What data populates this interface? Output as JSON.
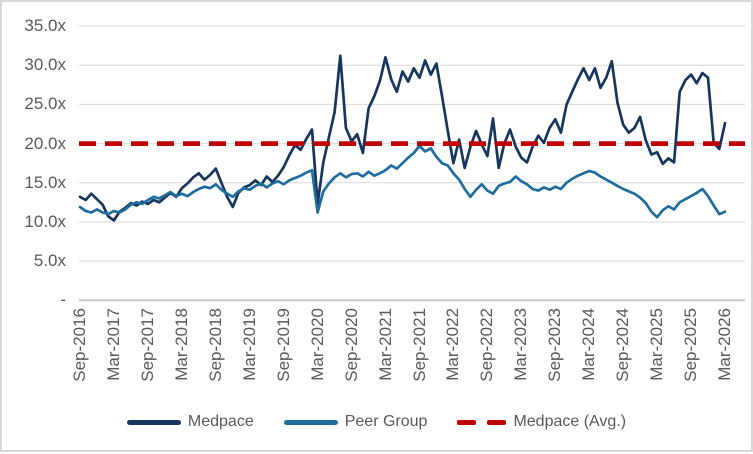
{
  "chart_data": {
    "type": "line",
    "title": "",
    "xlabel": "",
    "ylabel": "",
    "grid": true,
    "legend_position": "bottom",
    "y_axis": {
      "min": 0,
      "max": 35,
      "tick_step": 5,
      "tick_labels": [
        "-",
        "5.0x",
        "10.0x",
        "15.0x",
        "20.0x",
        "25.0x",
        "30.0x",
        "35.0x"
      ]
    },
    "x_axis": {
      "tick_labels": [
        "Sep-2016",
        "Mar-2017",
        "Sep-2017",
        "Mar-2018",
        "Sep-2018",
        "Mar-2019",
        "Sep-2019",
        "Mar-2020",
        "Sep-2020",
        "Mar-2021",
        "Sep-2021",
        "Mar-2022",
        "Sep-2022",
        "Mar-2023",
        "Sep-2023",
        "Mar-2024",
        "Sep-2024",
        "Mar-2025",
        "Sep-2025",
        "Mar-2026"
      ],
      "months_between_ticks": 6,
      "frequency_of_values": "monthly"
    },
    "series": [
      {
        "name": "Medpace",
        "color": "#17365D",
        "style": "solid",
        "values": [
          13.2,
          12.8,
          13.6,
          12.9,
          12.2,
          10.7,
          10.2,
          11.3,
          11.8,
          12.4,
          12.1,
          12.6,
          12.3,
          12.8,
          12.5,
          13.1,
          13.7,
          13.2,
          14.3,
          14.9,
          15.7,
          16.2,
          15.4,
          16.0,
          16.8,
          15.0,
          13.2,
          11.9,
          13.7,
          14.4,
          14.7,
          15.3,
          14.7,
          15.8,
          15.1,
          15.9,
          17.0,
          18.5,
          19.8,
          19.2,
          20.6,
          21.8,
          12.3,
          17.6,
          20.8,
          24.0,
          31.2,
          22.0,
          20.3,
          21.2,
          18.8,
          24.5,
          26.0,
          28.0,
          31.0,
          28.2,
          26.6,
          29.2,
          27.9,
          29.6,
          28.4,
          30.6,
          28.8,
          30.2,
          26.0,
          21.6,
          17.5,
          20.5,
          16.9,
          19.6,
          21.6,
          19.9,
          18.4,
          23.2,
          16.9,
          20.0,
          21.8,
          19.6,
          18.2,
          17.6,
          19.6,
          21.0,
          20.1,
          22.0,
          23.1,
          21.4,
          25.0,
          26.6,
          28.2,
          29.6,
          28.1,
          29.6,
          27.1,
          28.4,
          30.5,
          25.2,
          22.4,
          21.4,
          22.0,
          23.4,
          20.4,
          18.6,
          18.9,
          17.4,
          18.1,
          17.6,
          26.6,
          28.1,
          28.8,
          27.7,
          29.0,
          28.4,
          20.1,
          19.3,
          22.6
        ]
      },
      {
        "name": "Peer Group",
        "color": "#1F6C9F",
        "style": "solid",
        "values": [
          11.9,
          11.4,
          11.2,
          11.6,
          11.2,
          11.0,
          11.4,
          11.2,
          11.6,
          12.2,
          12.5,
          12.3,
          12.8,
          13.2,
          13.0,
          13.4,
          13.8,
          13.3,
          13.6,
          13.3,
          13.8,
          14.2,
          14.5,
          14.3,
          14.8,
          14.1,
          13.6,
          13.2,
          13.9,
          14.3,
          14.1,
          14.6,
          14.9,
          14.4,
          14.9,
          15.2,
          14.8,
          15.3,
          15.6,
          15.9,
          16.3,
          16.6,
          11.2,
          13.9,
          14.9,
          15.7,
          16.2,
          15.7,
          16.1,
          16.2,
          15.8,
          16.4,
          15.9,
          16.2,
          16.6,
          17.2,
          16.8,
          17.5,
          18.2,
          18.8,
          19.7,
          19.0,
          19.4,
          18.3,
          17.5,
          17.2,
          16.2,
          15.4,
          14.2,
          13.2,
          14.1,
          14.8,
          14.0,
          13.6,
          14.6,
          14.9,
          15.1,
          15.8,
          15.2,
          14.8,
          14.2,
          14.0,
          14.4,
          14.1,
          14.5,
          14.2,
          15.0,
          15.5,
          15.9,
          16.2,
          16.5,
          16.3,
          15.8,
          15.4,
          15.0,
          14.6,
          14.2,
          13.9,
          13.6,
          13.1,
          12.4,
          11.3,
          10.6,
          11.5,
          12.0,
          11.6,
          12.5,
          12.9,
          13.3,
          13.7,
          14.2,
          13.3,
          12.1,
          11.0,
          11.3
        ]
      },
      {
        "name": "Medpace (Avg.)",
        "color": "#C00000",
        "style": "dashed",
        "avg_value": 20.0
      }
    ]
  },
  "colors": {
    "grid": "#D9D9D9",
    "axis": "#C9C9C9",
    "tick_text": "#595959",
    "border": "#D9D9D9"
  }
}
